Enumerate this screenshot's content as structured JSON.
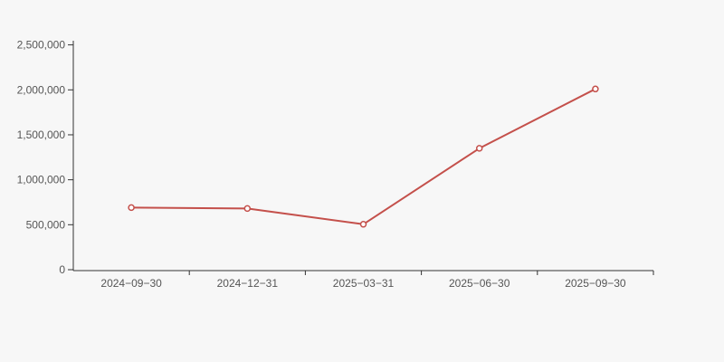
{
  "page": {
    "background": "#f7f7f7"
  },
  "chart_data": {
    "type": "line",
    "title": "",
    "xlabel": "",
    "ylabel": "",
    "categories": [
      "2024−09−30",
      "2024−12−31",
      "2025−03−31",
      "2025−06−30",
      "2025−09−30"
    ],
    "values": [
      690000,
      680000,
      505000,
      1350000,
      2010000
    ],
    "ylim": [
      0,
      2500000
    ],
    "y_ticks": [
      0,
      500000,
      1000000,
      1500000,
      2000000,
      2500000
    ],
    "y_tick_labels": [
      "0",
      "500,000",
      "1,000,000",
      "1,500,000",
      "2,000,000",
      "2,500,000"
    ],
    "grid": false,
    "legend": false,
    "line_color": "#c4504b",
    "marker_fill": "#ffffff",
    "marker_style": "hollow-circle",
    "axis_color": "#333333",
    "label_color": "#555555"
  }
}
